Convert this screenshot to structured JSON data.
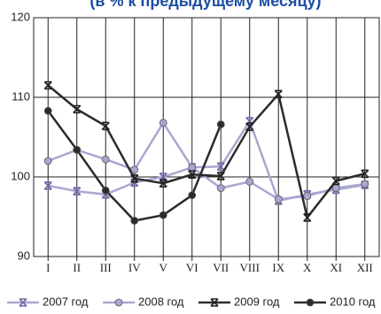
{
  "chart_data": {
    "type": "line",
    "title": "(в % к предыдущему месяцу)",
    "categories": [
      "I",
      "II",
      "III",
      "IV",
      "V",
      "VI",
      "VII",
      "VIII",
      "IX",
      "X",
      "XI",
      "XII"
    ],
    "series": [
      {
        "name": "2007 год",
        "color": "#a9a7d2",
        "marker": "star",
        "values": [
          98.9,
          98.2,
          97.8,
          99.3,
          100.0,
          101.2,
          101.3,
          107.0,
          97.0,
          97.8,
          98.4,
          99.0
        ]
      },
      {
        "name": "2008 год",
        "color": "#a9a7d2",
        "marker": "circle",
        "values": [
          102.0,
          103.4,
          102.2,
          100.9,
          106.8,
          101.2,
          98.6,
          99.4,
          97.2,
          97.6,
          98.6,
          99.1
        ]
      },
      {
        "name": "2009 год",
        "color": "#2b2b2b",
        "marker": "star",
        "values": [
          111.5,
          108.5,
          106.4,
          99.8,
          99.2,
          100.3,
          100.1,
          106.3,
          110.4,
          94.9,
          99.5,
          100.4
        ]
      },
      {
        "name": "2010 год",
        "color": "#2b2b2b",
        "marker": "circle",
        "values": [
          108.3,
          103.4,
          98.3,
          94.5,
          95.2,
          97.7,
          106.6,
          null,
          null,
          null,
          null,
          null
        ]
      }
    ],
    "ylim": [
      90,
      120
    ],
    "yticks": [
      90,
      100,
      110,
      120
    ],
    "grid": true
  }
}
